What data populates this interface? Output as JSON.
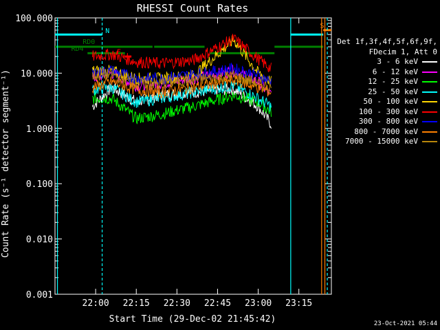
{
  "chart_data": {
    "type": "line",
    "title": "RHESSI Count Rates",
    "xlabel": "Start Time (29-Dec-02 21:45:42)",
    "ylabel": "Count Rate (s⁻¹ detector segment⁻¹)",
    "yscale": "log",
    "ylim": [
      0.001,
      100
    ],
    "xlim_minutes": [
      21.75,
      23.45
    ],
    "x_ticks": [
      "22:00",
      "22:15",
      "22:30",
      "22:45",
      "23:00",
      "23:15"
    ],
    "y_ticks": [
      "100.000",
      "10.000",
      "1.000",
      "0.100",
      "0.010",
      "0.001"
    ],
    "legend_header": [
      "Det 1f,3f,4f,5f,6f,9f,",
      "FDecim 1, Att 0"
    ],
    "series": [
      {
        "name": "3 - 6 keV",
        "color": "#ffffff",
        "values": [
          [
            21.98,
            2.5
          ],
          [
            22.1,
            5.5
          ],
          [
            22.25,
            3.0
          ],
          [
            22.4,
            4.0
          ],
          [
            22.6,
            4.5
          ],
          [
            22.85,
            5.2
          ],
          [
            23.0,
            2.5
          ],
          [
            23.08,
            1.2
          ]
        ]
      },
      {
        "name": "6 - 12 keV",
        "color": "#ff00ff",
        "values": [
          [
            21.98,
            8.0
          ],
          [
            22.1,
            10.0
          ],
          [
            22.25,
            6.0
          ],
          [
            22.4,
            6.5
          ],
          [
            22.6,
            8.0
          ],
          [
            22.85,
            11.0
          ],
          [
            23.0,
            7.0
          ],
          [
            23.08,
            4.0
          ]
        ]
      },
      {
        "name": "12 - 25 keV",
        "color": "#00ff00",
        "values": [
          [
            21.98,
            3.5
          ],
          [
            22.1,
            3.5
          ],
          [
            22.25,
            1.5
          ],
          [
            22.4,
            1.8
          ],
          [
            22.6,
            2.5
          ],
          [
            22.85,
            4.0
          ],
          [
            23.0,
            3.0
          ],
          [
            23.08,
            2.0
          ]
        ]
      },
      {
        "name": "25 - 50 keV",
        "color": "#00ffff",
        "values": [
          [
            21.98,
            5.0
          ],
          [
            22.1,
            5.5
          ],
          [
            22.25,
            3.0
          ],
          [
            22.4,
            3.5
          ],
          [
            22.6,
            4.5
          ],
          [
            22.85,
            6.0
          ],
          [
            23.0,
            3.5
          ],
          [
            23.08,
            2.5
          ]
        ]
      },
      {
        "name": "50 - 100 keV",
        "color": "#ffd700",
        "values": [
          [
            21.98,
            11.0
          ],
          [
            22.1,
            11.0
          ],
          [
            22.25,
            8.0
          ],
          [
            22.4,
            8.0
          ],
          [
            22.6,
            9.0
          ],
          [
            22.85,
            40.0
          ],
          [
            23.0,
            10.0
          ],
          [
            23.08,
            7.0
          ]
        ]
      },
      {
        "name": "100 - 300 keV",
        "color": "#ff0000",
        "values": [
          [
            21.98,
            20.0
          ],
          [
            22.1,
            22.0
          ],
          [
            22.25,
            16.0
          ],
          [
            22.4,
            15.0
          ],
          [
            22.6,
            17.0
          ],
          [
            22.85,
            42.0
          ],
          [
            23.0,
            18.0
          ],
          [
            23.08,
            12.0
          ]
        ]
      },
      {
        "name": "300 - 800 keV",
        "color": "#0000ff",
        "values": [
          [
            21.98,
            10.0
          ],
          [
            22.1,
            11.0
          ],
          [
            22.25,
            8.0
          ],
          [
            22.4,
            8.0
          ],
          [
            22.6,
            9.5
          ],
          [
            22.85,
            12.0
          ],
          [
            23.0,
            9.0
          ],
          [
            23.08,
            7.0
          ]
        ]
      },
      {
        "name": "800 - 7000 keV",
        "color": "#ff8000",
        "values": [
          [
            21.98,
            5.5
          ],
          [
            22.1,
            7.0
          ],
          [
            22.25,
            5.0
          ],
          [
            22.4,
            4.5
          ],
          [
            22.6,
            5.5
          ],
          [
            22.85,
            7.5
          ],
          [
            23.0,
            5.5
          ],
          [
            23.08,
            4.5
          ]
        ]
      },
      {
        "name": "7000 - 15000 keV",
        "color": "#b8860b",
        "values": [
          [
            21.98,
            9.0
          ],
          [
            22.1,
            9.5
          ],
          [
            22.25,
            6.5
          ],
          [
            22.4,
            6.5
          ],
          [
            22.6,
            7.5
          ],
          [
            22.85,
            9.0
          ],
          [
            23.0,
            6.5
          ],
          [
            23.08,
            5.5
          ]
        ]
      }
    ],
    "annotations": [
      {
        "text": "N",
        "color": "#00ffff"
      },
      {
        "text": "RD0",
        "color": "#008000"
      },
      {
        "text": "RD4",
        "color": "#008000"
      },
      {
        "text": "F",
        "color": "#ff0000"
      },
      {
        "text": "S",
        "color": "#ff8000"
      }
    ],
    "timestamp": "23-Oct-2021 05:44"
  }
}
